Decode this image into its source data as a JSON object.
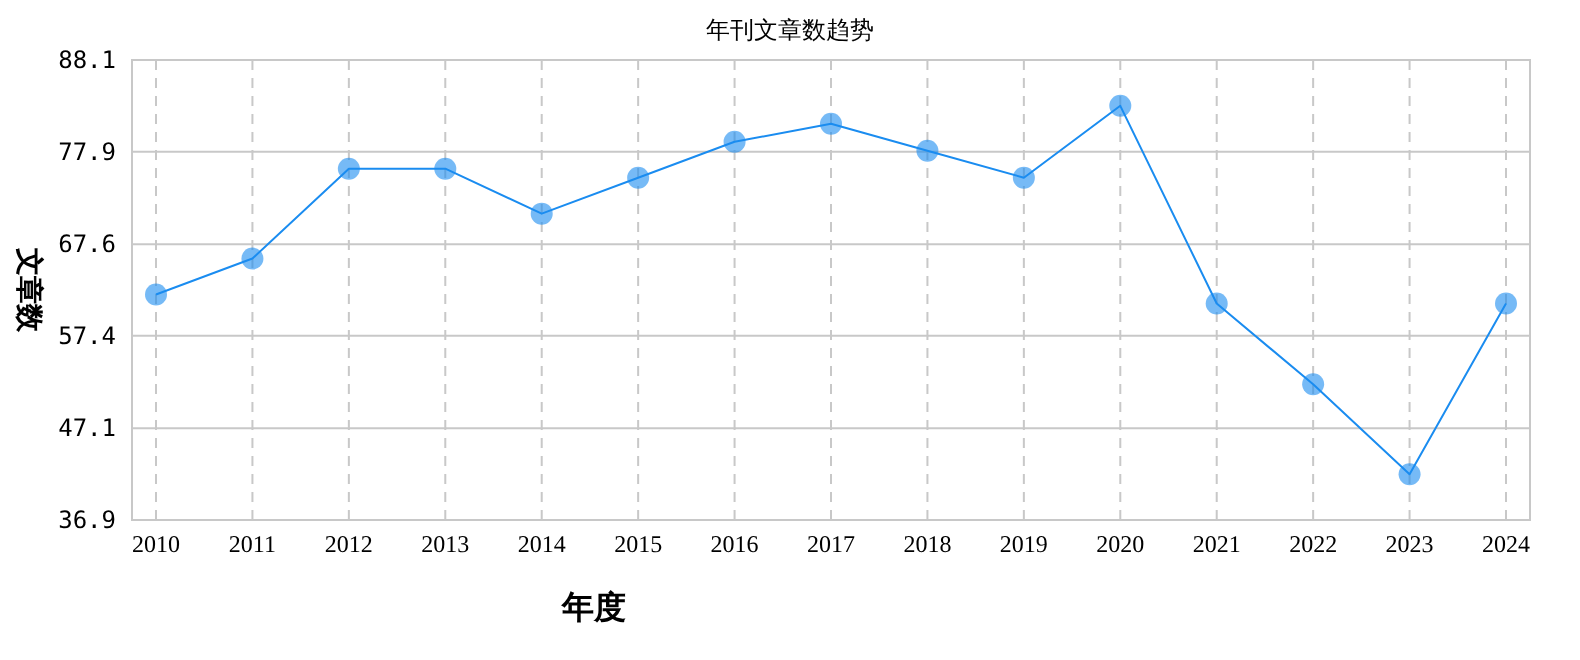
{
  "chart_data": {
    "type": "line",
    "title": "年刊文章数趋势",
    "xlabel": "年度",
    "ylabel": "文章数",
    "categories": [
      "2010",
      "2011",
      "2012",
      "2013",
      "2014",
      "2015",
      "2016",
      "2017",
      "2018",
      "2019",
      "2020",
      "2021",
      "2022",
      "2023",
      "2024"
    ],
    "series": [
      {
        "color": "#1a8cf0",
        "values": [
          62,
          66,
          76,
          76,
          71,
          75,
          79,
          81,
          78,
          75,
          83,
          61,
          52,
          42,
          61
        ]
      }
    ],
    "ylim": [
      36.9,
      88.1
    ],
    "yticks": [
      36.9,
      47.1,
      57.4,
      67.6,
      77.9,
      88.1
    ],
    "grid": true,
    "marker": "circle",
    "line_style": "solid"
  }
}
